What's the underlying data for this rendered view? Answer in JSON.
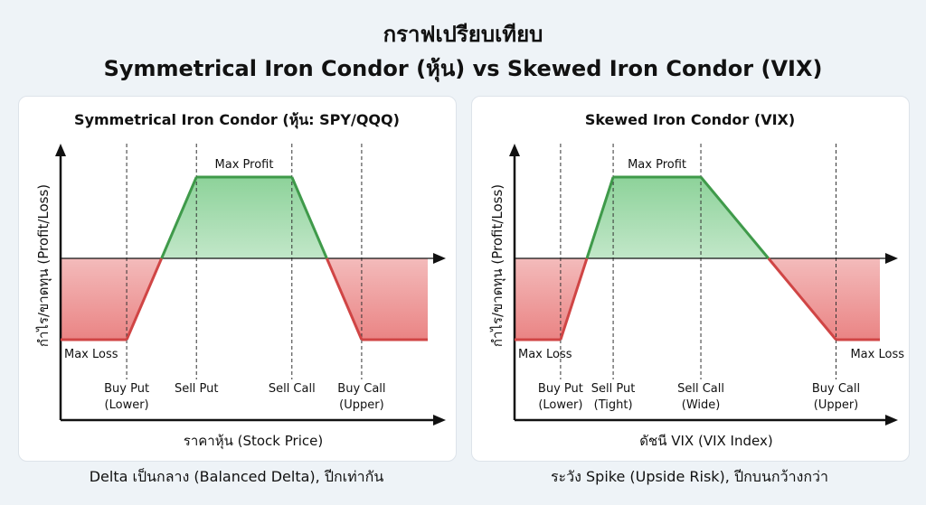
{
  "header": {
    "title_line1": "กราฟเปรียบเทียบ",
    "title_line2": "Symmetrical Iron Condor (หุ้น) vs Skewed Iron Condor (VIX)"
  },
  "colors": {
    "profit": "#3f9a4a",
    "loss": "#d04545",
    "profit_fill": "#5cbf6e",
    "loss_fill": "#e35b5b"
  },
  "chart_data": [
    {
      "type": "line",
      "title": "Symmetrical Iron Condor (หุ้น: SPY/QQQ)",
      "xlabel": "ราคาหุ้น (Stock Price)",
      "ylabel": "กำไร/ขาดทุน (Profit/Loss)",
      "xlim": [
        0,
        100
      ],
      "ylim": [
        -1.8,
        1.6
      ],
      "payoff": {
        "x": [
          0,
          18,
          37,
          63,
          82,
          100
        ],
        "y": [
          -1,
          -1,
          1,
          1,
          -1,
          -1
        ]
      },
      "strikes": [
        {
          "x": 18,
          "label": [
            "Buy Put",
            "(Lower)"
          ]
        },
        {
          "x": 37,
          "label": [
            "Sell Put"
          ]
        },
        {
          "x": 63,
          "label": [
            "Sell Call"
          ]
        },
        {
          "x": 82,
          "label": [
            "Buy Call",
            "(Upper)"
          ]
        }
      ],
      "annotations": [
        {
          "text": "Max Profit",
          "x": 50,
          "y": 1
        },
        {
          "text": "Max Loss",
          "x": 9,
          "y": -1
        }
      ],
      "caption": "Delta เป็นกลาง (Balanced Delta), ปีกเท่ากัน"
    },
    {
      "type": "line",
      "title": "Skewed Iron Condor (VIX)",
      "xlabel": "ดัชนี VIX (VIX Index)",
      "ylabel": "กำไร/ขาดทุน (Profit/Loss)",
      "xlim": [
        0,
        100
      ],
      "ylim": [
        -1.8,
        1.6
      ],
      "payoff": {
        "x": [
          0,
          12.6,
          27,
          51,
          88,
          100
        ],
        "y": [
          -1,
          -1,
          1,
          1,
          -1,
          -1
        ]
      },
      "strikes": [
        {
          "x": 12.6,
          "label": [
            "Buy Put",
            "(Lower)"
          ]
        },
        {
          "x": 27,
          "label": [
            "Sell Put",
            "(Tight)"
          ]
        },
        {
          "x": 51,
          "label": [
            "Sell Call",
            "(Wide)"
          ]
        },
        {
          "x": 88,
          "label": [
            "Buy Call",
            "(Upper)"
          ]
        }
      ],
      "annotations": [
        {
          "text": "Max Profit",
          "x": 39,
          "y": 1
        },
        {
          "text": "Max Loss",
          "x": 9,
          "y": -1
        },
        {
          "text": "Max Loss",
          "x": 98,
          "y": -1
        }
      ],
      "caption": "ระวัง Spike (Upside Risk), ปีกบนกว้างกว่า"
    }
  ]
}
